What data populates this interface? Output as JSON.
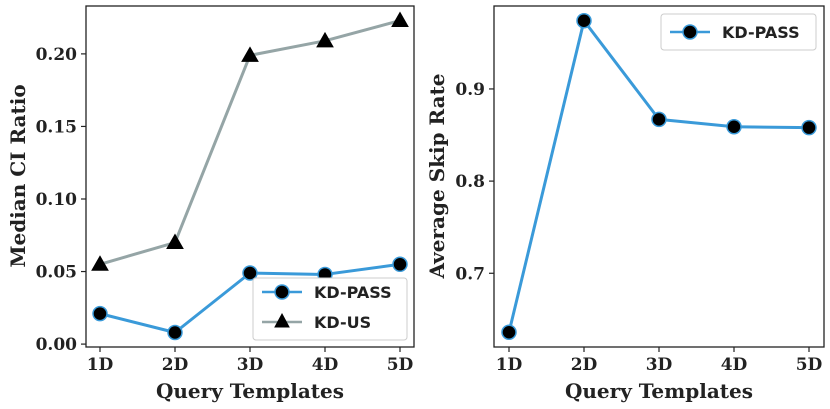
{
  "chart_data": [
    {
      "type": "line",
      "title": "",
      "xlabel": "Query Templates",
      "ylabel": "Median CI Ratio",
      "categories": [
        "1D",
        "2D",
        "3D",
        "4D",
        "5D"
      ],
      "ylim": [
        -0.002,
        0.233
      ],
      "yticks": [
        0.0,
        0.05,
        0.1,
        0.15,
        0.2
      ],
      "ytick_labels": [
        "0.00",
        "0.05",
        "0.10",
        "0.15",
        "0.20"
      ],
      "legend_position": "lower-right",
      "series": [
        {
          "name": "KD-PASS",
          "values": [
            0.021,
            0.008,
            0.049,
            0.048,
            0.055
          ],
          "color": "#3a9ad9",
          "marker": "circle"
        },
        {
          "name": "KD-US",
          "values": [
            0.055,
            0.07,
            0.199,
            0.209,
            0.223
          ],
          "color": "#95a5a6",
          "marker": "triangle"
        }
      ]
    },
    {
      "type": "line",
      "title": "",
      "xlabel": "Query Templates",
      "ylabel": "Average Skip Rate",
      "categories": [
        "1D",
        "2D",
        "3D",
        "4D",
        "5D"
      ],
      "ylim": [
        0.62,
        0.99
      ],
      "yticks": [
        0.7,
        0.8,
        0.9
      ],
      "ytick_labels": [
        "0.7",
        "0.8",
        "0.9"
      ],
      "legend_position": "upper-right",
      "series": [
        {
          "name": "KD-PASS",
          "values": [
            0.636,
            0.974,
            0.867,
            0.859,
            0.858
          ],
          "color": "#3a9ad9",
          "marker": "circle"
        }
      ]
    }
  ]
}
